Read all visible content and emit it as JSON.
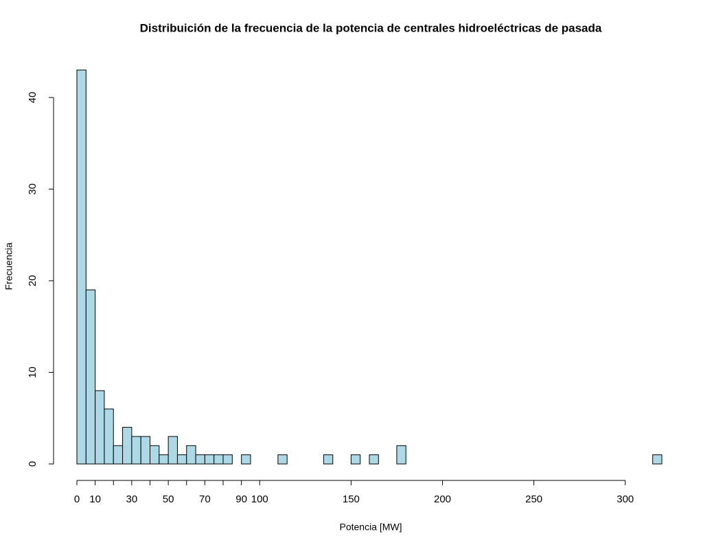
{
  "chart_data": {
    "type": "histogram",
    "title": "Distribuición de la frecuencia de la potencia de centrales hidroeléctricas de pasada",
    "xlabel": "Potencia [MW]",
    "ylabel": "Frecuencia",
    "bins": [
      0,
      5,
      10,
      15,
      20,
      25,
      30,
      35,
      40,
      45,
      50,
      55,
      60,
      65,
      70,
      75,
      80,
      85,
      90,
      95,
      100,
      105,
      110,
      115,
      120,
      125,
      130,
      135,
      140,
      145,
      150,
      155,
      160,
      165,
      170,
      175,
      180,
      185,
      190,
      195,
      200,
      205,
      210,
      215,
      220,
      225,
      230,
      235,
      240,
      245,
      250,
      255,
      260,
      265,
      270,
      275,
      280,
      285,
      290,
      295,
      300,
      305,
      310,
      315,
      320
    ],
    "values": [
      43,
      19,
      8,
      6,
      2,
      4,
      3,
      3,
      2,
      1,
      3,
      1,
      2,
      1,
      1,
      1,
      1,
      0,
      1,
      0,
      0,
      0,
      1,
      0,
      0,
      0,
      0,
      1,
      0,
      0,
      1,
      0,
      1,
      0,
      0,
      2,
      0,
      0,
      0,
      0,
      0,
      0,
      0,
      0,
      0,
      0,
      0,
      0,
      0,
      0,
      0,
      0,
      0,
      0,
      0,
      0,
      0,
      0,
      0,
      0,
      0,
      0,
      0,
      1
    ],
    "color": "#add8e6",
    "xlim": [
      0,
      320
    ],
    "ylim": [
      0,
      43
    ],
    "xticks": [
      0,
      10,
      30,
      50,
      70,
      90,
      100,
      150,
      200,
      250,
      300
    ],
    "xticks_minor": [
      20,
      40,
      60,
      80
    ],
    "yticks": [
      0,
      10,
      20,
      30,
      40
    ]
  }
}
